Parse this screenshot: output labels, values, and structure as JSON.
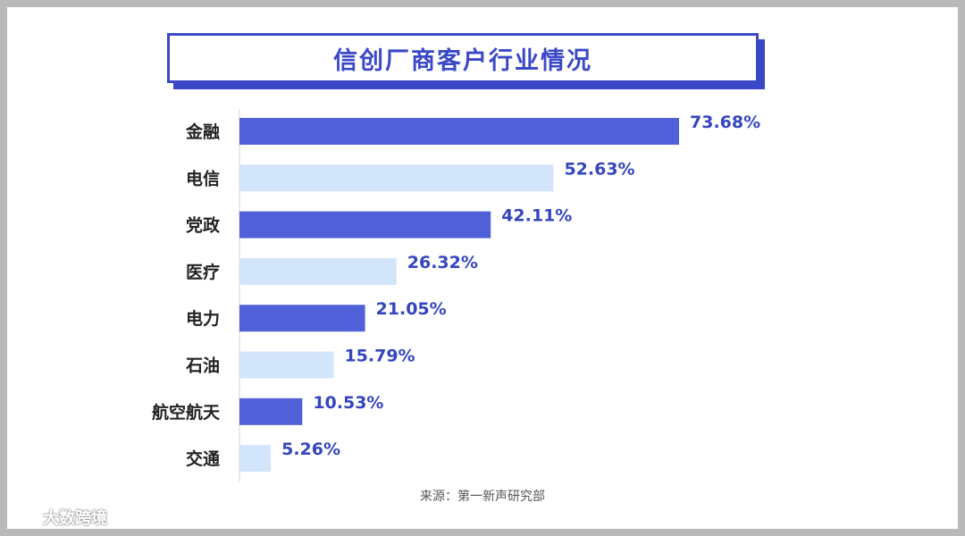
{
  "chart_data": {
    "type": "bar",
    "orientation": "horizontal",
    "title": "信创厂商客户行业情况",
    "categories": [
      "金融",
      "电信",
      "党政",
      "医疗",
      "电力",
      "石油",
      "航空航天",
      "交通"
    ],
    "values": [
      73.68,
      52.63,
      42.11,
      26.32,
      21.05,
      15.79,
      10.53,
      5.26
    ],
    "value_labels": [
      "73.68%",
      "52.63%",
      "42.11%",
      "26.32%",
      "21.05%",
      "15.79%",
      "10.53%",
      "5.26%"
    ],
    "unit": "%",
    "xlim": [
      0,
      73.68
    ],
    "colors": [
      "#4f60d8",
      "#d3e5fb"
    ],
    "grid": false,
    "legend": "none"
  },
  "source": "来源：第一新声研究部",
  "watermark": "大数跨境"
}
